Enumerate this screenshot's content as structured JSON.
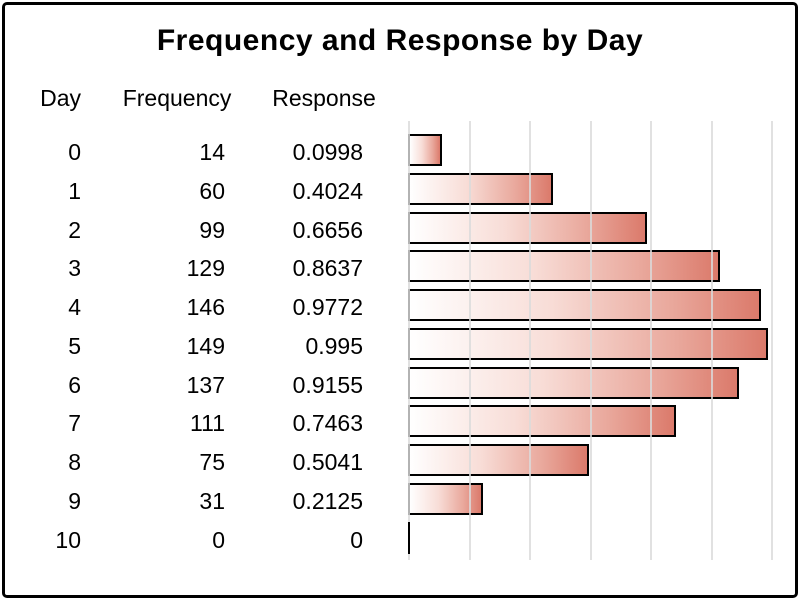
{
  "title": "Frequency and Response by Day",
  "table": {
    "headers": [
      "Day",
      "Frequency",
      "Response"
    ],
    "rows": [
      [
        "0",
        "14",
        "0.0998"
      ],
      [
        "1",
        "60",
        "0.4024"
      ],
      [
        "2",
        "99",
        "0.6656"
      ],
      [
        "3",
        "129",
        "0.8637"
      ],
      [
        "4",
        "146",
        "0.9772"
      ],
      [
        "5",
        "149",
        "0.995"
      ],
      [
        "6",
        "137",
        "0.9155"
      ],
      [
        "7",
        "111",
        "0.7463"
      ],
      [
        "8",
        "75",
        "0.5041"
      ],
      [
        "9",
        "31",
        "0.2125"
      ],
      [
        "10",
        "0",
        "0"
      ]
    ]
  },
  "chart_data": {
    "type": "bar",
    "orientation": "horizontal",
    "title": "Frequency and Response by Day",
    "category_label": "Day",
    "categories": [
      0,
      1,
      2,
      3,
      4,
      5,
      6,
      7,
      8,
      9,
      10
    ],
    "series": [
      {
        "name": "Frequency",
        "values": [
          14,
          60,
          99,
          129,
          146,
          149,
          137,
          111,
          75,
          31,
          0
        ]
      },
      {
        "name": "Response",
        "values": [
          0.0998,
          0.4024,
          0.6656,
          0.8637,
          0.9772,
          0.995,
          0.9155,
          0.7463,
          0.5041,
          0.2125,
          0
        ]
      }
    ],
    "bar_series": "Frequency",
    "xlim": [
      0,
      157.5
    ],
    "gridlines_at": [
      0,
      25,
      50,
      75,
      100,
      125,
      150
    ],
    "grid": true,
    "legend": false,
    "bar_fill_gradient": [
      "#FFFFFF",
      "#DB7A6B"
    ],
    "bar_border_color": "#000000",
    "gridline_color": "#DBDBDB",
    "frame_color": "#000000"
  }
}
